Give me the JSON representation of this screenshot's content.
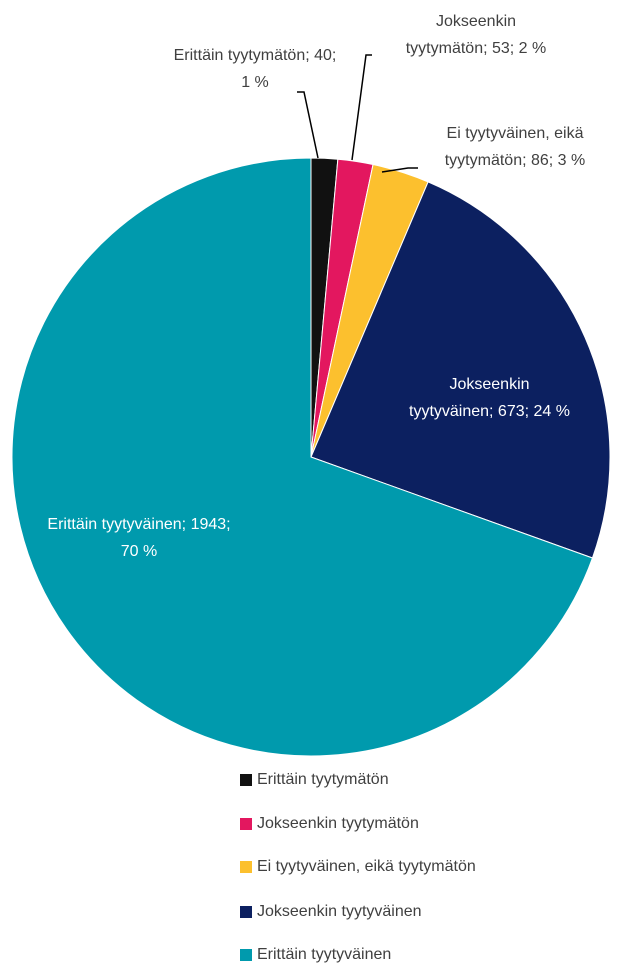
{
  "chart_data": {
    "type": "pie",
    "categories": [
      "Erittäin tyytymätön",
      "Jokseenkin tyytymätön",
      "Ei tyytyväinen, eikä tyytymätön",
      "Jokseenkin tyytyväinen",
      "Erittäin tyytyväinen"
    ],
    "values": [
      40,
      53,
      86,
      673,
      1943
    ],
    "value_labels": [
      "Erittäin tyytymätön; 40; 1 %",
      "Jokseenkin tyytymätön; 53; 2 %",
      "Ei tyytyväinen, eikä tyytymätön; 86; 3 %",
      "Jokseenkin tyytyväinen; 673; 24 %",
      "Erittäin tyytyväinen; 1943; 70 %"
    ],
    "colors": [
      "#111111",
      "#e3175f",
      "#fcc02e",
      "#0c2060",
      "#009aad"
    ],
    "legend": "bottom"
  }
}
